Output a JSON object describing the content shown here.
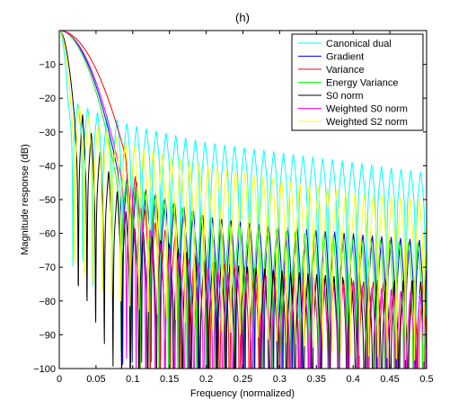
{
  "chart_data": {
    "type": "line",
    "title": "(h)",
    "xlabel": "Frequency (normalized)",
    "ylabel": "Magnitude response (dB)",
    "xlim": [
      0,
      0.5
    ],
    "ylim": [
      -100,
      0
    ],
    "xticks": [
      0,
      0.05,
      0.1,
      0.15,
      0.2,
      0.25,
      0.3,
      0.35,
      0.4,
      0.45,
      0.5
    ],
    "xtick_labels": [
      "0",
      "0.05",
      "0.1",
      "0.15",
      "0.2",
      "0.25",
      "0.3",
      "0.35",
      "0.4",
      "0.45",
      "0.5"
    ],
    "yticks": [
      -10,
      -20,
      -30,
      -40,
      -50,
      -60,
      -70,
      -80,
      -90,
      -100
    ],
    "ytick_labels": [
      "−10",
      "−20",
      "−30",
      "−40",
      "−50",
      "−60",
      "−70",
      "−80",
      "−90",
      "−100"
    ],
    "grid": false,
    "legend_position": "top-right",
    "series": [
      {
        "name": "Canonical dual",
        "color": "#00ffff",
        "mainlobe_edge": 0.012,
        "period": 0.01333,
        "sidelobe_peaks": [
          [
            0.02,
            -21
          ],
          [
            0.05,
            -24
          ],
          [
            0.1,
            -28
          ],
          [
            0.2,
            -33
          ],
          [
            0.3,
            -36
          ],
          [
            0.4,
            -39
          ],
          [
            0.5,
            -42
          ]
        ],
        "null_depth": 14
      },
      {
        "name": "Gradient",
        "color": "#0000ff",
        "mainlobe_edge": 0.08,
        "period": 0.01282,
        "sidelobe_peaks": [
          [
            0.09,
            -42
          ],
          [
            0.12,
            -47
          ],
          [
            0.2,
            -55
          ],
          [
            0.3,
            -58
          ],
          [
            0.4,
            -60
          ],
          [
            0.5,
            -62
          ]
        ],
        "null_depth": 18
      },
      {
        "name": "Variance",
        "color": "#ff0000",
        "mainlobe_edge": 0.09,
        "period": 0.0135,
        "sidelobe_peaks": [
          [
            0.095,
            -37
          ],
          [
            0.12,
            -55
          ],
          [
            0.2,
            -68
          ],
          [
            0.3,
            -72
          ],
          [
            0.4,
            -74
          ],
          [
            0.5,
            -75
          ]
        ],
        "null_depth": 20
      },
      {
        "name": "Energy Variance",
        "color": "#00ff00",
        "mainlobe_edge": 0.078,
        "period": 0.01282,
        "sidelobe_peaks": [
          [
            0.085,
            -44
          ],
          [
            0.12,
            -48
          ],
          [
            0.2,
            -55
          ],
          [
            0.3,
            -59
          ],
          [
            0.4,
            -61
          ],
          [
            0.5,
            -63
          ]
        ],
        "null_depth": 18
      },
      {
        "name": "S0 norm",
        "color": "#000000",
        "mainlobe_edge": 0.02,
        "period": 0.0118,
        "sidelobe_peaks": [
          [
            0.03,
            -24
          ],
          [
            0.06,
            -38
          ],
          [
            0.1,
            -58
          ],
          [
            0.2,
            -68
          ],
          [
            0.3,
            -71
          ],
          [
            0.4,
            -73
          ],
          [
            0.5,
            -74
          ]
        ],
        "null_depth": 22
      },
      {
        "name": "Weighted S0 norm",
        "color": "#ff00ff",
        "mainlobe_edge": 0.085,
        "period": 0.0131,
        "sidelobe_peaks": [
          [
            0.095,
            -44
          ],
          [
            0.13,
            -62
          ],
          [
            0.2,
            -70
          ],
          [
            0.3,
            -73
          ],
          [
            0.4,
            -75
          ],
          [
            0.5,
            -78
          ]
        ],
        "null_depth": 20
      },
      {
        "name": "Weighted S2 norm",
        "color": "#ffff00",
        "mainlobe_edge": 0.015,
        "period": 0.0125,
        "sidelobe_peaks": [
          [
            0.02,
            -20
          ],
          [
            0.05,
            -28
          ],
          [
            0.1,
            -34
          ],
          [
            0.2,
            -40
          ],
          [
            0.3,
            -44
          ],
          [
            0.4,
            -48
          ],
          [
            0.5,
            -50
          ]
        ],
        "null_depth": 18
      }
    ]
  }
}
